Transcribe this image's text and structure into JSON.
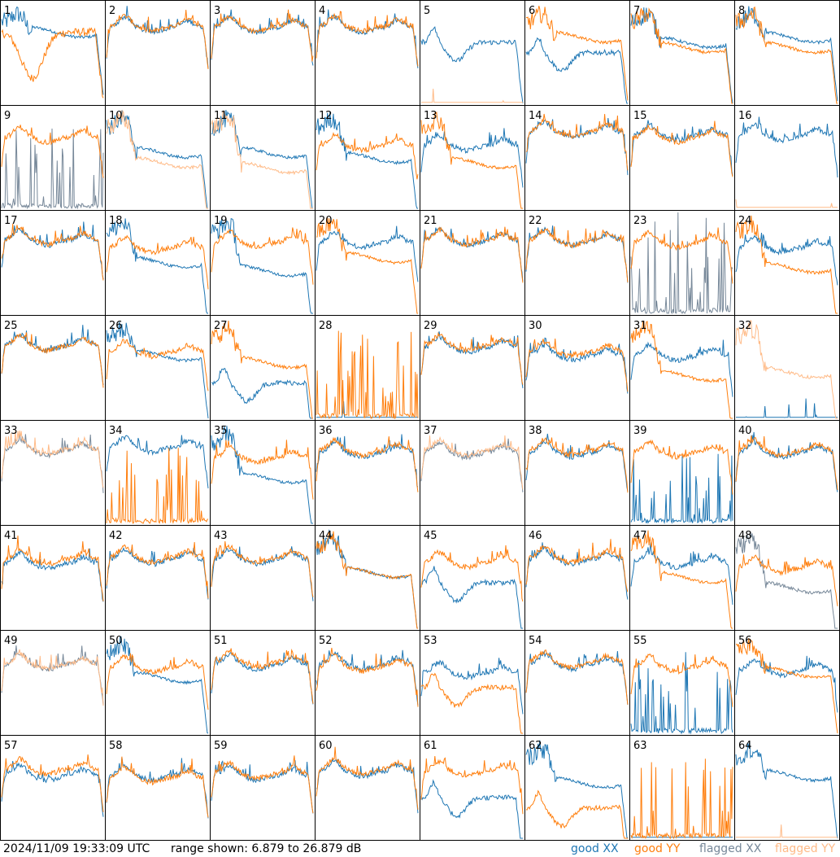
{
  "footer": {
    "timestamp": "2024/11/09 19:33:09 UTC",
    "range": "range shown: 6.879 to 26.879 dB"
  },
  "legend": {
    "good_xx": "good XX",
    "good_yy": "good YY",
    "flagged_xx": "flagged XX",
    "flagged_yy": "flagged YY"
  },
  "colors": {
    "good_xx": "#1f77b4",
    "good_yy": "#ff7f0e",
    "flagged_xx": "#778899",
    "flagged_yy": "#ffbb88"
  },
  "chart_data": {
    "type": "line",
    "grid": "8x8 small multiples",
    "ylim_db": [
      6.879,
      26.879
    ],
    "panels": [
      {
        "label": "1",
        "xx": {
          "flag": false,
          "shape": "highdrop",
          "level": 0.7
        },
        "yy": {
          "flag": false,
          "shape": "dip",
          "level": 0.3
        }
      },
      {
        "label": "2",
        "xx": {
          "flag": false,
          "shape": "normal",
          "level": 0.75
        },
        "yy": {
          "flag": false,
          "shape": "normal",
          "level": 0.76
        }
      },
      {
        "label": "3",
        "xx": {
          "flag": false,
          "shape": "normal",
          "level": 0.75
        },
        "yy": {
          "flag": false,
          "shape": "normal",
          "level": 0.76
        }
      },
      {
        "label": "4",
        "xx": {
          "flag": false,
          "shape": "normal",
          "level": 0.75
        },
        "yy": {
          "flag": false,
          "shape": "normal",
          "level": 0.76
        }
      },
      {
        "label": "5",
        "xx": {
          "flag": false,
          "shape": "sag",
          "level": 0.6
        },
        "yy": {
          "flag": true,
          "shape": "flat",
          "level": 0.0
        }
      },
      {
        "label": "6",
        "xx": {
          "flag": false,
          "shape": "sag",
          "level": 0.5
        },
        "yy": {
          "flag": false,
          "shape": "highdrop",
          "level": 0.65
        }
      },
      {
        "label": "7",
        "xx": {
          "flag": false,
          "shape": "highdrop",
          "level": 0.6
        },
        "yy": {
          "flag": false,
          "shape": "highdrop",
          "level": 0.55
        }
      },
      {
        "label": "8",
        "xx": {
          "flag": false,
          "shape": "highdrop",
          "level": 0.65
        },
        "yy": {
          "flag": false,
          "shape": "highdrop",
          "level": 0.55
        }
      },
      {
        "label": "9",
        "xx": {
          "flag": true,
          "shape": "spikes",
          "level": 0.2
        },
        "yy": {
          "flag": false,
          "shape": "normal",
          "level": 0.7
        }
      },
      {
        "label": "10",
        "xx": {
          "flag": false,
          "shape": "highdrop",
          "level": 0.55
        },
        "yy": {
          "flag": true,
          "shape": "highdrop",
          "level": 0.45
        }
      },
      {
        "label": "11",
        "xx": {
          "flag": false,
          "shape": "highdrop",
          "level": 0.55
        },
        "yy": {
          "flag": true,
          "shape": "highdrop",
          "level": 0.4
        }
      },
      {
        "label": "12",
        "xx": {
          "flag": false,
          "shape": "highdrop",
          "level": 0.5
        },
        "yy": {
          "flag": false,
          "shape": "normal",
          "level": 0.62
        }
      },
      {
        "label": "13",
        "xx": {
          "flag": false,
          "shape": "normal",
          "level": 0.62
        },
        "yy": {
          "flag": false,
          "shape": "highdrop",
          "level": 0.45
        }
      },
      {
        "label": "14",
        "xx": {
          "flag": false,
          "shape": "normal",
          "level": 0.75
        },
        "yy": {
          "flag": false,
          "shape": "normal",
          "level": 0.76
        }
      },
      {
        "label": "15",
        "xx": {
          "flag": false,
          "shape": "normal",
          "level": 0.72
        },
        "yy": {
          "flag": false,
          "shape": "normal",
          "level": 0.7
        }
      },
      {
        "label": "16",
        "xx": {
          "flag": false,
          "shape": "normal",
          "level": 0.72
        },
        "yy": {
          "flag": true,
          "shape": "flat",
          "level": 0.0
        }
      },
      {
        "label": "17",
        "xx": {
          "flag": false,
          "shape": "normal",
          "level": 0.72
        },
        "yy": {
          "flag": false,
          "shape": "normal",
          "level": 0.73
        }
      },
      {
        "label": "18",
        "xx": {
          "flag": false,
          "shape": "highdrop",
          "level": 0.5
        },
        "yy": {
          "flag": false,
          "shape": "normal",
          "level": 0.65
        }
      },
      {
        "label": "19",
        "xx": {
          "flag": false,
          "shape": "highdrop",
          "level": 0.42
        },
        "yy": {
          "flag": false,
          "shape": "normal",
          "level": 0.7
        }
      },
      {
        "label": "20",
        "xx": {
          "flag": false,
          "shape": "normal",
          "level": 0.7
        },
        "yy": {
          "flag": false,
          "shape": "highdrop",
          "level": 0.55
        }
      },
      {
        "label": "21",
        "xx": {
          "flag": false,
          "shape": "normal",
          "level": 0.72
        },
        "yy": {
          "flag": false,
          "shape": "normal",
          "level": 0.72
        }
      },
      {
        "label": "22",
        "xx": {
          "flag": false,
          "shape": "normal",
          "level": 0.72
        },
        "yy": {
          "flag": false,
          "shape": "normal",
          "level": 0.72
        }
      },
      {
        "label": "23",
        "xx": {
          "flag": true,
          "shape": "spikes",
          "level": 0.4
        },
        "yy": {
          "flag": false,
          "shape": "normal",
          "level": 0.7
        }
      },
      {
        "label": "24",
        "xx": {
          "flag": false,
          "shape": "normal",
          "level": 0.65
        },
        "yy": {
          "flag": false,
          "shape": "highdrop",
          "level": 0.45
        }
      },
      {
        "label": "25",
        "xx": {
          "flag": false,
          "shape": "normal",
          "level": 0.72
        },
        "yy": {
          "flag": false,
          "shape": "normal",
          "level": 0.72
        }
      },
      {
        "label": "26",
        "xx": {
          "flag": false,
          "shape": "highdrop",
          "level": 0.62
        },
        "yy": {
          "flag": false,
          "shape": "normal",
          "level": 0.66
        }
      },
      {
        "label": "27",
        "xx": {
          "flag": false,
          "shape": "sag",
          "level": 0.35
        },
        "yy": {
          "flag": false,
          "shape": "highdrop",
          "level": 0.55
        }
      },
      {
        "label": "28",
        "xx": {
          "flag": false,
          "shape": "flat",
          "level": 0.0
        },
        "yy": {
          "flag": false,
          "shape": "spikes",
          "level": 0.3
        }
      },
      {
        "label": "29",
        "xx": {
          "flag": false,
          "shape": "normal",
          "level": 0.7
        },
        "yy": {
          "flag": false,
          "shape": "normal",
          "level": 0.72
        }
      },
      {
        "label": "30",
        "xx": {
          "flag": false,
          "shape": "normal",
          "level": 0.62
        },
        "yy": {
          "flag": false,
          "shape": "normal",
          "level": 0.66
        }
      },
      {
        "label": "31",
        "xx": {
          "flag": false,
          "shape": "normal",
          "level": 0.62
        },
        "yy": {
          "flag": false,
          "shape": "highdrop",
          "level": 0.42
        }
      },
      {
        "label": "32",
        "xx": {
          "flag": false,
          "shape": "flat",
          "level": 0.0
        },
        "yy": {
          "flag": true,
          "shape": "highdrop",
          "level": 0.45
        }
      },
      {
        "label": "33",
        "xx": {
          "flag": true,
          "shape": "normal",
          "level": 0.72
        },
        "yy": {
          "flag": true,
          "shape": "normal",
          "level": 0.73
        }
      },
      {
        "label": "34",
        "xx": {
          "flag": false,
          "shape": "normal",
          "level": 0.75
        },
        "yy": {
          "flag": false,
          "shape": "spikes",
          "level": 0.2
        }
      },
      {
        "label": "35",
        "xx": {
          "flag": false,
          "shape": "highdrop",
          "level": 0.45
        },
        "yy": {
          "flag": false,
          "shape": "normal",
          "level": 0.65
        }
      },
      {
        "label": "36",
        "xx": {
          "flag": false,
          "shape": "normal",
          "level": 0.7
        },
        "yy": {
          "flag": false,
          "shape": "normal",
          "level": 0.72
        }
      },
      {
        "label": "37",
        "xx": {
          "flag": true,
          "shape": "normal",
          "level": 0.7
        },
        "yy": {
          "flag": true,
          "shape": "normal",
          "level": 0.72
        }
      },
      {
        "label": "38",
        "xx": {
          "flag": false,
          "shape": "normal",
          "level": 0.7
        },
        "yy": {
          "flag": false,
          "shape": "normal",
          "level": 0.72
        }
      },
      {
        "label": "39",
        "xx": {
          "flag": false,
          "shape": "spikes",
          "level": 0.1
        },
        "yy": {
          "flag": false,
          "shape": "normal",
          "level": 0.7
        }
      },
      {
        "label": "40",
        "xx": {
          "flag": false,
          "shape": "normal",
          "level": 0.7
        },
        "yy": {
          "flag": false,
          "shape": "normal",
          "level": 0.72
        }
      },
      {
        "label": "41",
        "xx": {
          "flag": false,
          "shape": "normal",
          "level": 0.64
        },
        "yy": {
          "flag": false,
          "shape": "normal",
          "level": 0.68
        }
      },
      {
        "label": "42",
        "xx": {
          "flag": false,
          "shape": "normal",
          "level": 0.68
        },
        "yy": {
          "flag": false,
          "shape": "normal",
          "level": 0.7
        }
      },
      {
        "label": "43",
        "xx": {
          "flag": false,
          "shape": "normal",
          "level": 0.68
        },
        "yy": {
          "flag": false,
          "shape": "normal",
          "level": 0.7
        }
      },
      {
        "label": "44",
        "xx": {
          "flag": false,
          "shape": "highdrop",
          "level": 0.55
        },
        "yy": {
          "flag": false,
          "shape": "highdrop",
          "level": 0.55
        }
      },
      {
        "label": "45",
        "xx": {
          "flag": false,
          "shape": "sag",
          "level": 0.45
        },
        "yy": {
          "flag": false,
          "shape": "normal",
          "level": 0.65
        }
      },
      {
        "label": "46",
        "xx": {
          "flag": false,
          "shape": "normal",
          "level": 0.68
        },
        "yy": {
          "flag": false,
          "shape": "normal",
          "level": 0.7
        }
      },
      {
        "label": "47",
        "xx": {
          "flag": false,
          "shape": "normal",
          "level": 0.65
        },
        "yy": {
          "flag": false,
          "shape": "highdrop",
          "level": 0.5
        }
      },
      {
        "label": "48",
        "xx": {
          "flag": true,
          "shape": "highdrop",
          "level": 0.4
        },
        "yy": {
          "flag": false,
          "shape": "normal",
          "level": 0.6
        }
      },
      {
        "label": "49",
        "xx": {
          "flag": true,
          "shape": "normal",
          "level": 0.68
        },
        "yy": {
          "flag": true,
          "shape": "normal",
          "level": 0.68
        }
      },
      {
        "label": "50",
        "xx": {
          "flag": false,
          "shape": "highdrop",
          "level": 0.55
        },
        "yy": {
          "flag": false,
          "shape": "normal",
          "level": 0.65
        }
      },
      {
        "label": "51",
        "xx": {
          "flag": false,
          "shape": "normal",
          "level": 0.68
        },
        "yy": {
          "flag": false,
          "shape": "normal",
          "level": 0.7
        }
      },
      {
        "label": "52",
        "xx": {
          "flag": false,
          "shape": "normal",
          "level": 0.68
        },
        "yy": {
          "flag": false,
          "shape": "normal",
          "level": 0.66
        }
      },
      {
        "label": "53",
        "xx": {
          "flag": false,
          "shape": "normal",
          "level": 0.6
        },
        "yy": {
          "flag": false,
          "shape": "sag",
          "level": 0.45
        }
      },
      {
        "label": "54",
        "xx": {
          "flag": false,
          "shape": "normal",
          "level": 0.68
        },
        "yy": {
          "flag": false,
          "shape": "normal",
          "level": 0.7
        }
      },
      {
        "label": "55",
        "xx": {
          "flag": false,
          "shape": "spikes",
          "level": 0.2
        },
        "yy": {
          "flag": false,
          "shape": "normal",
          "level": 0.66
        }
      },
      {
        "label": "56",
        "xx": {
          "flag": false,
          "shape": "normal",
          "level": 0.62
        },
        "yy": {
          "flag": false,
          "shape": "highdrop",
          "level": 0.6
        }
      },
      {
        "label": "57",
        "xx": {
          "flag": false,
          "shape": "normal",
          "level": 0.62
        },
        "yy": {
          "flag": false,
          "shape": "normal",
          "level": 0.68
        }
      },
      {
        "label": "58",
        "xx": {
          "flag": false,
          "shape": "normal",
          "level": 0.62
        },
        "yy": {
          "flag": false,
          "shape": "normal",
          "level": 0.6
        }
      },
      {
        "label": "59",
        "xx": {
          "flag": false,
          "shape": "normal",
          "level": 0.62
        },
        "yy": {
          "flag": false,
          "shape": "normal",
          "level": 0.64
        }
      },
      {
        "label": "60",
        "xx": {
          "flag": false,
          "shape": "normal",
          "level": 0.66
        },
        "yy": {
          "flag": false,
          "shape": "normal",
          "level": 0.68
        }
      },
      {
        "label": "61",
        "xx": {
          "flag": false,
          "shape": "sag",
          "level": 0.4
        },
        "yy": {
          "flag": false,
          "shape": "normal",
          "level": 0.66
        }
      },
      {
        "label": "62",
        "xx": {
          "flag": false,
          "shape": "highdrop",
          "level": 0.55
        },
        "yy": {
          "flag": false,
          "shape": "sag",
          "level": 0.3
        }
      },
      {
        "label": "63",
        "xx": {
          "flag": false,
          "shape": "flat",
          "level": 0.0
        },
        "yy": {
          "flag": false,
          "shape": "spikes",
          "level": 0.2
        }
      },
      {
        "label": "64",
        "xx": {
          "flag": false,
          "shape": "highdrop",
          "level": 0.62
        },
        "yy": {
          "flag": true,
          "shape": "flat",
          "level": 0.0
        }
      }
    ]
  }
}
